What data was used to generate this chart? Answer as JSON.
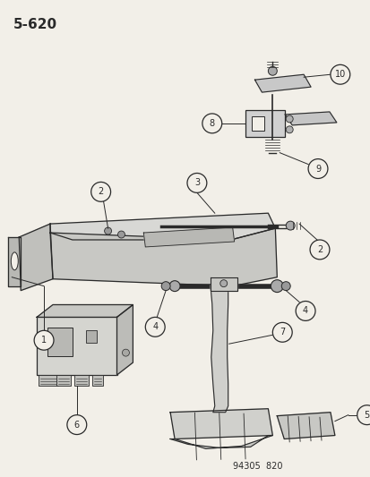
{
  "title": "5-620",
  "footer": "94305  820",
  "background_color": "#f2efe8",
  "line_color": "#2a2a2a",
  "text_color": "#2a2a2a",
  "circle_fill": "#f2efe8",
  "figsize": [
    4.14,
    5.33
  ],
  "dpi": 100
}
